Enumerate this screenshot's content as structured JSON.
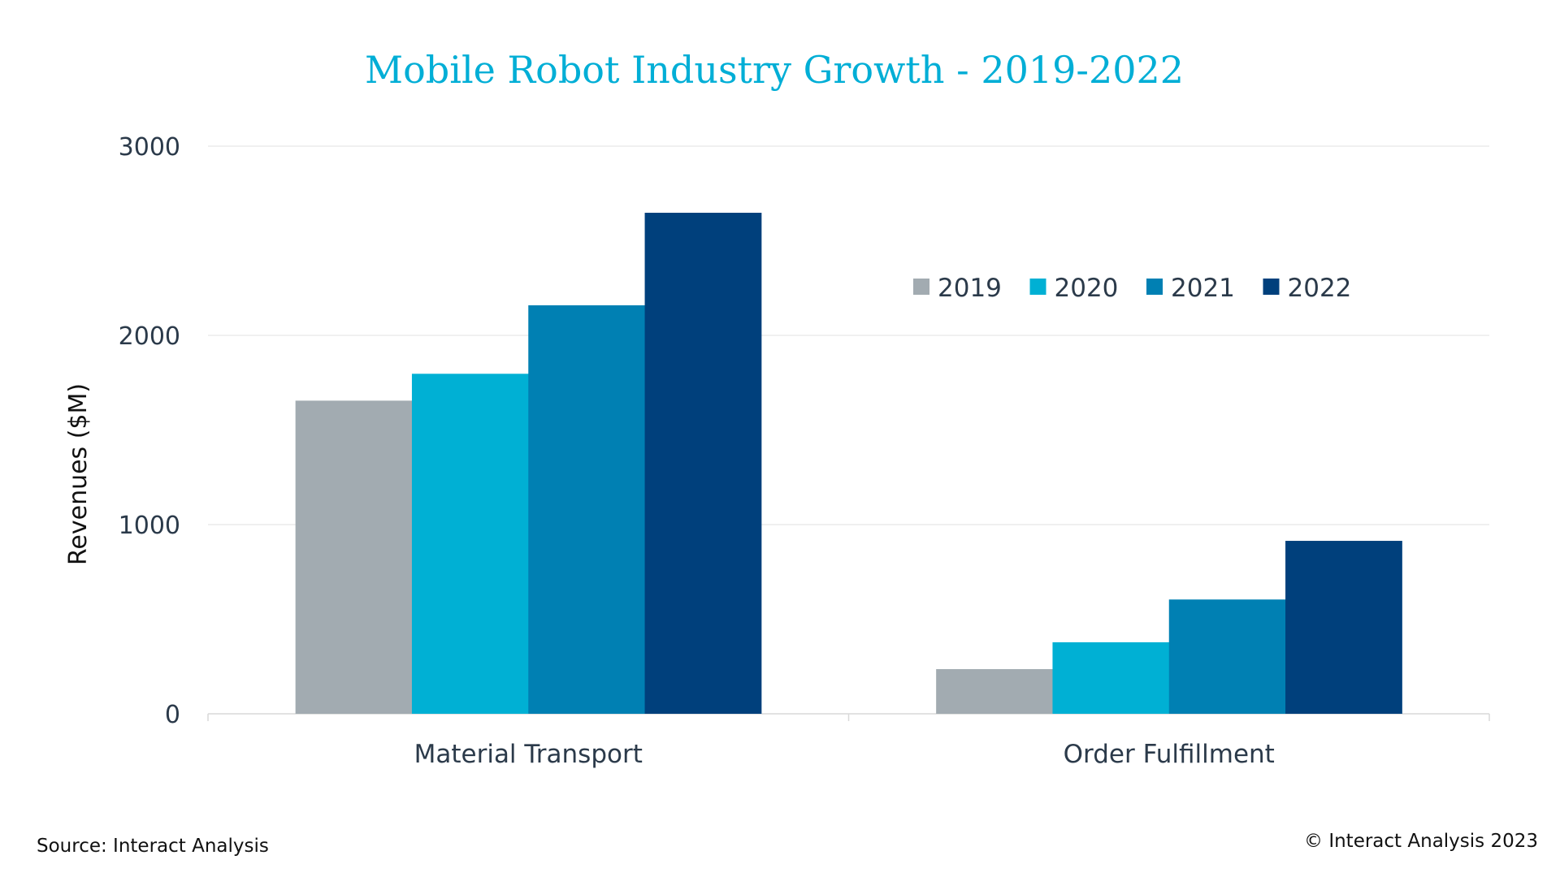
{
  "chart_data": {
    "type": "bar",
    "title": "Mobile Robot Industry Growth - 2019-2022",
    "xlabel": "",
    "ylabel": "Revenues ($M)",
    "ylim": [
      0,
      3000
    ],
    "yticks": [
      0,
      1000,
      2000,
      3000
    ],
    "grid": true,
    "legend_position": "top-right",
    "categories": [
      "Material Transport",
      "Order Fulfillment"
    ],
    "series": [
      {
        "name": "2019",
        "color": "#a2abb1",
        "values": [
          1655,
          236
        ]
      },
      {
        "name": "2020",
        "color": "#00b0d4",
        "values": [
          1797,
          378
        ]
      },
      {
        "name": "2021",
        "color": "#0080b3",
        "values": [
          2159,
          604
        ]
      },
      {
        "name": "2022",
        "color": "#00407c",
        "values": [
          2648,
          914
        ]
      }
    ]
  },
  "footer": {
    "source": "Source: Interact Analysis",
    "copyright": "© Interact Analysis 2023"
  }
}
